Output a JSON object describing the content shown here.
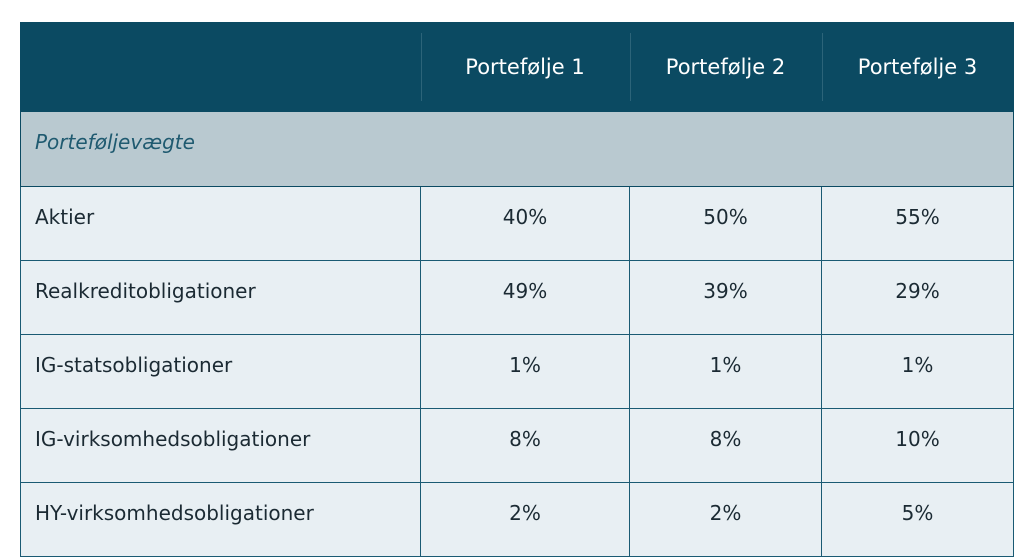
{
  "table": {
    "headers": [
      "",
      "Portefølje 1",
      "Portefølje 2",
      "Portefølje 3"
    ],
    "section_title": "Porteføljevægte",
    "rows": [
      {
        "label": "Aktier",
        "values": [
          "40%",
          "50%",
          "55%"
        ]
      },
      {
        "label": "Realkreditobligationer",
        "values": [
          "49%",
          "39%",
          "29%"
        ]
      },
      {
        "label": "IG-statsobligationer",
        "values": [
          "1%",
          "1%",
          "1%"
        ]
      },
      {
        "label": "IG-virksomhedsobligationer",
        "values": [
          "8%",
          "8%",
          "10%"
        ]
      },
      {
        "label": "HY-virksomhedsobligationer",
        "values": [
          "2%",
          "2%",
          "5%"
        ]
      }
    ]
  },
  "colors": {
    "header_bg": "#0b4a62",
    "section_bg": "#b9c9d0",
    "row_bg": "#e8eff3",
    "border": "#1a5a73"
  }
}
